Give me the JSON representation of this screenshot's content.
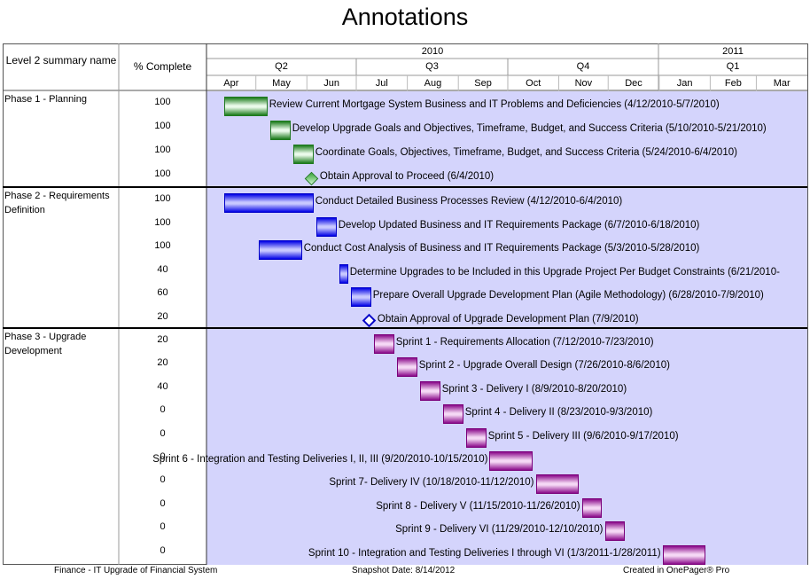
{
  "title": "Annotations",
  "header": {
    "col_name": "Level 2 summary name",
    "col_pct": "% Complete"
  },
  "axis": {
    "years": [
      "2010",
      "2011"
    ],
    "quarters": [
      "Q2",
      "Q3",
      "Q4",
      "Q1"
    ],
    "months": [
      "Apr",
      "May",
      "Jun",
      "Jul",
      "Aug",
      "Sep",
      "Oct",
      "Nov",
      "Dec",
      "Jan",
      "Feb",
      "Mar"
    ]
  },
  "colors": {
    "chart_bg": "#d4d4fc",
    "phase1": "#1f8a1f",
    "phase2": "#0000e6",
    "phase3": "#8a0a8a"
  },
  "footer": {
    "left": "Finance - IT Upgrade of Financial System",
    "center": "Snapshot Date: 8/14/2012",
    "right": "Created in OnePager® Pro"
  },
  "chart_data": {
    "type": "gantt",
    "time_range": [
      "2010-04-01",
      "2011-03-31"
    ],
    "phases": [
      {
        "name": "Phase 1 - Planning",
        "color": "green",
        "tasks": [
          {
            "label": "Review Current Mortgage System Business and IT Problems and Deficiencies (4/12/2010-5/7/2010)",
            "start": "2010-04-12",
            "end": "2010-05-07",
            "pct": "100",
            "milestone": false
          },
          {
            "label": "Develop Upgrade Goals and Objectives, Timeframe, Budget, and Success Criteria (5/10/2010-5/21/2010)",
            "start": "2010-05-10",
            "end": "2010-05-21",
            "pct": "100",
            "milestone": false
          },
          {
            "label": "Coordinate Goals, Objectives, Timeframe, Budget, and Success Criteria (5/24/2010-6/4/2010)",
            "start": "2010-05-24",
            "end": "2010-06-04",
            "pct": "100",
            "milestone": false
          },
          {
            "label": "Obtain Approval to Proceed (6/4/2010)",
            "start": "2010-06-04",
            "end": "2010-06-04",
            "pct": "100",
            "milestone": true
          }
        ]
      },
      {
        "name": "Phase 2 - Requirements Definition",
        "color": "blue",
        "tasks": [
          {
            "label": "Conduct Detailed Business Processes Review (4/12/2010-6/4/2010)",
            "start": "2010-04-12",
            "end": "2010-06-04",
            "pct": "100",
            "milestone": false
          },
          {
            "label": "Develop Updated Business and IT Requirements Package (6/7/2010-6/18/2010)",
            "start": "2010-06-07",
            "end": "2010-06-18",
            "pct": "100",
            "milestone": false
          },
          {
            "label": "Conduct Cost Analysis of Business and IT Requirements Package (5/3/2010-5/28/2010)",
            "start": "2010-05-03",
            "end": "2010-05-28",
            "pct": "100",
            "milestone": false
          },
          {
            "label": "Determine Upgrades to be Included in this Upgrade Project Per Budget Constraints (6/21/2010-",
            "start": "2010-06-21",
            "end": "2010-06-25",
            "pct": "40",
            "milestone": false
          },
          {
            "label": "Prepare Overall Upgrade Development Plan (Agile Methodology) (6/28/2010-7/9/2010)",
            "start": "2010-06-28",
            "end": "2010-07-09",
            "pct": "60",
            "milestone": false
          },
          {
            "label": "Obtain Approval of Upgrade Development Plan (7/9/2010)",
            "start": "2010-07-09",
            "end": "2010-07-09",
            "pct": "20",
            "milestone": true
          }
        ]
      },
      {
        "name": "Phase 3 - Upgrade Development",
        "color": "purple",
        "tasks": [
          {
            "label": "Sprint 1 - Requirements Allocation (7/12/2010-7/23/2010)",
            "start": "2010-07-12",
            "end": "2010-07-23",
            "pct": "20",
            "milestone": false
          },
          {
            "label": "Sprint 2 - Upgrade Overall  Design (7/26/2010-8/6/2010)",
            "start": "2010-07-26",
            "end": "2010-08-06",
            "pct": "20",
            "milestone": false
          },
          {
            "label": "Sprint 3 - Delivery I (8/9/2010-8/20/2010)",
            "start": "2010-08-09",
            "end": "2010-08-20",
            "pct": "40",
            "milestone": false
          },
          {
            "label": "Sprint 4 - Delivery II (8/23/2010-9/3/2010)",
            "start": "2010-08-23",
            "end": "2010-09-03",
            "pct": "0",
            "milestone": false
          },
          {
            "label": "Sprint 5 - Delivery III (9/6/2010-9/17/2010)",
            "start": "2010-09-06",
            "end": "2010-09-17",
            "pct": "0",
            "milestone": false
          },
          {
            "label": "Sprint 6 - Integration and Testing Deliveries I, II, III (9/20/2010-10/15/2010)",
            "start": "2010-09-20",
            "end": "2010-10-15",
            "pct": "0",
            "milestone": false,
            "label_left": true
          },
          {
            "label": "Sprint 7- Delivery IV (10/18/2010-11/12/2010)",
            "start": "2010-10-18",
            "end": "2010-11-12",
            "pct": "0",
            "milestone": false,
            "label_left": true
          },
          {
            "label": "Sprint 8 - Delivery V (11/15/2010-11/26/2010)",
            "start": "2010-11-15",
            "end": "2010-11-26",
            "pct": "0",
            "milestone": false,
            "label_left": true
          },
          {
            "label": "Sprint 9 - Delivery VI (11/29/2010-12/10/2010)",
            "start": "2010-11-29",
            "end": "2010-12-10",
            "pct": "0",
            "milestone": false,
            "label_left": true
          },
          {
            "label": "Sprint 10 - Integration and Testing Deliveries I through VI (1/3/2011-1/28/2011)",
            "start": "2011-01-03",
            "end": "2011-01-28",
            "pct": "0",
            "milestone": false,
            "label_left": true
          }
        ]
      }
    ]
  }
}
